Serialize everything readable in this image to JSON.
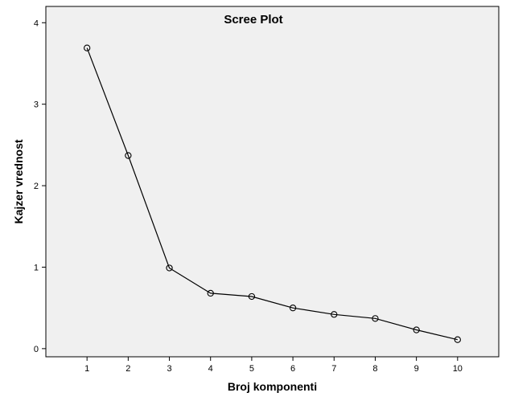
{
  "chart_data": {
    "type": "line",
    "title": "Scree Plot",
    "xlabel": "Broj komponenti",
    "ylabel": "Kajzer vrednost",
    "x": [
      1,
      2,
      3,
      4,
      5,
      6,
      7,
      8,
      9,
      10
    ],
    "xtick_labels": [
      "1",
      "2",
      "3",
      "4",
      "5",
      "6",
      "7",
      "8",
      "9",
      "10"
    ],
    "ytick_labels": [
      "0",
      "1",
      "2",
      "3",
      "4"
    ],
    "series": [
      {
        "values": [
          3.69,
          2.37,
          0.99,
          0.68,
          0.64,
          0.5,
          0.42,
          0.37,
          0.23,
          0.11
        ]
      }
    ],
    "xlim": [
      0,
      11
    ],
    "ylim": [
      -0.1,
      4.2
    ],
    "grid": false,
    "legend": "none",
    "marker": "open-circle",
    "colors": {
      "plot_background": "#f0f0f0",
      "line": "#000000",
      "frame": "#000000"
    }
  }
}
